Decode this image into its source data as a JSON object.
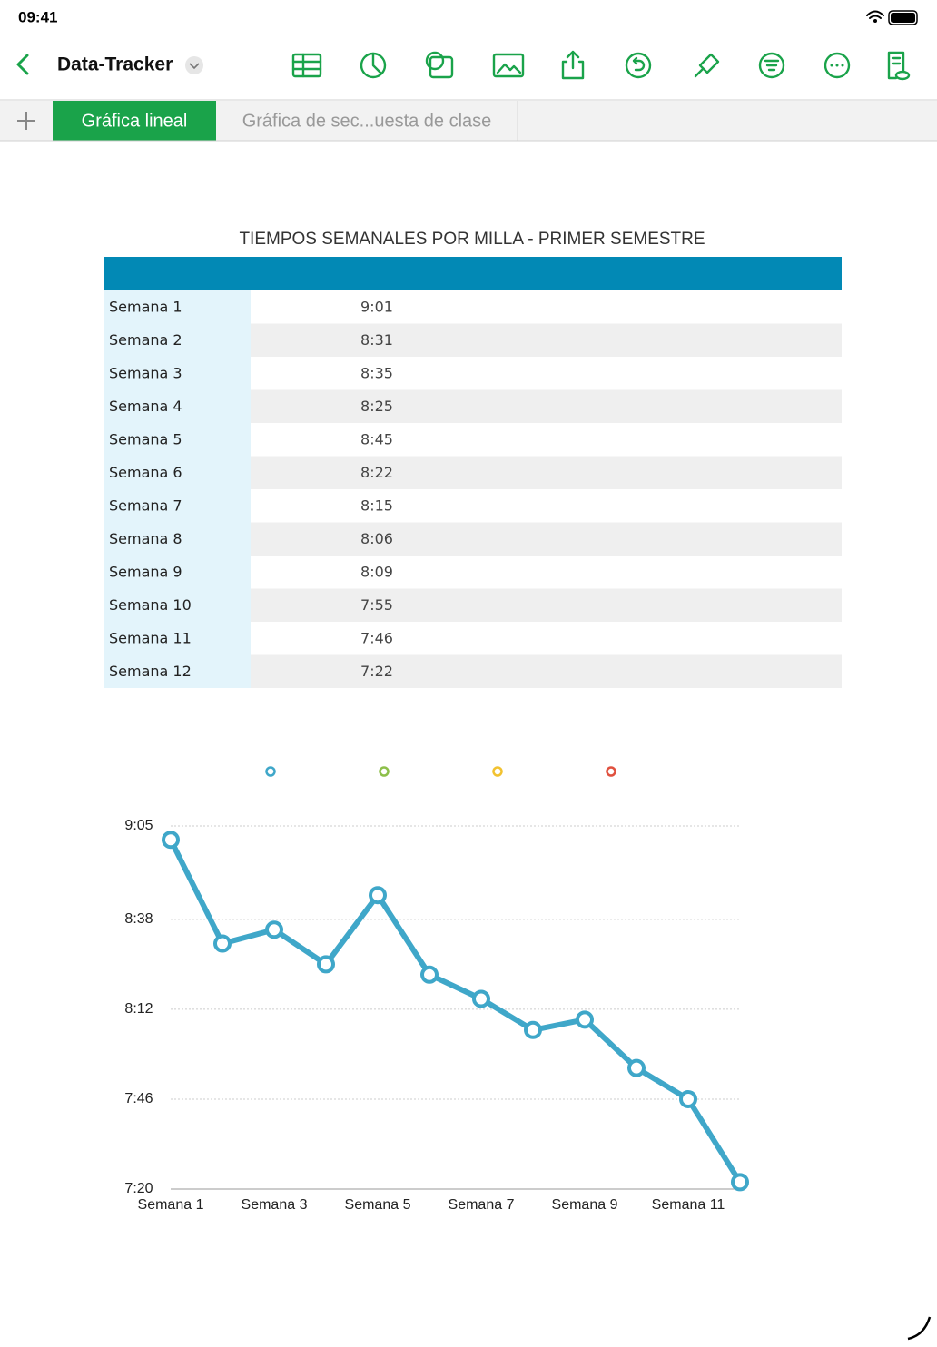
{
  "status_bar": {
    "time": "09:41"
  },
  "toolbar": {
    "document_title": "Data-Tracker"
  },
  "tabs": [
    "Gráfica lineal",
    "Gráfica de sec...uesta de clase"
  ],
  "table": {
    "title": "TIEMPOS SEMANALES POR MILLA - PRIMER SEMESTRE",
    "rows": [
      [
        "Semana 1",
        "9:01"
      ],
      [
        "Semana 2",
        "8:31"
      ],
      [
        "Semana 3",
        "8:35"
      ],
      [
        "Semana 4",
        "8:25"
      ],
      [
        "Semana 5",
        "8:45"
      ],
      [
        "Semana 6",
        "8:22"
      ],
      [
        "Semana 7",
        "8:15"
      ],
      [
        "Semana 8",
        "8:06"
      ],
      [
        "Semana 9",
        "8:09"
      ],
      [
        "Semana 10",
        "7:55"
      ],
      [
        "Semana 11",
        "7:46"
      ],
      [
        "Semana 12",
        "7:22"
      ]
    ]
  },
  "chart_data": {
    "type": "line",
    "categories": [
      "Semana 1",
      null,
      "Semana 3",
      null,
      "Semana 5",
      null,
      "Semana 7",
      null,
      "Semana 9",
      null,
      "Semana 11",
      null
    ],
    "series": [
      {
        "color": "#3fa7c9",
        "values": [
          541,
          511,
          515,
          505,
          525,
          502,
          495,
          486,
          489,
          475,
          466,
          442
        ]
      }
    ],
    "legend_colors": [
      "#3fa7c9",
      "#8dbf4a",
      "#f2c230",
      "#e0513f"
    ],
    "ylim": [
      440,
      545
    ],
    "yticks": [
      {
        "value": 440,
        "label": "7:20"
      },
      {
        "value": 466,
        "label": "7:46"
      },
      {
        "value": 492,
        "label": "8:12"
      },
      {
        "value": 518,
        "label": "8:38"
      },
      {
        "value": 545,
        "label": "9:05"
      }
    ],
    "grid": true
  }
}
